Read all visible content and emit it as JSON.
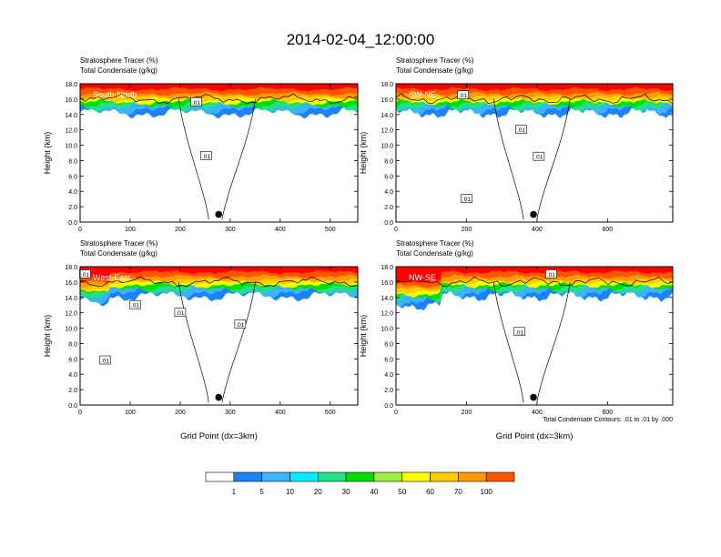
{
  "title": "2014-02-04_12:00:00",
  "colors": {
    "levels": [
      "#ffffff",
      "#1e82ff",
      "#3ab4ff",
      "#00eeff",
      "#22e088",
      "#00e000",
      "#a0ee40",
      "#ffff00",
      "#ffcc00",
      "#ff9900",
      "#ff5500",
      "#ff0000"
    ]
  },
  "colorbar": {
    "labels": [
      "1",
      "5",
      "10",
      "20",
      "30",
      "40",
      "50",
      "60",
      "70",
      "100"
    ]
  },
  "footnote": "Total Condensate Contours: .01 to .01 by .000",
  "chart_data": [
    {
      "type": "heatmap",
      "label": "South-North",
      "ylabel": "Height (km)",
      "xlabel": "",
      "header_line1": "Stratosphere Tracer   (%)",
      "header_line2": "Total Condensate   (g/kg)",
      "xlim": [
        0,
        555
      ],
      "ylim": [
        0,
        18
      ],
      "xticks": [
        0,
        100,
        200,
        300,
        400,
        500
      ],
      "yticks": [
        0,
        2,
        4,
        6,
        8,
        10,
        12,
        14,
        16,
        18
      ],
      "contour_labels": [
        {
          "text": ".01",
          "x": 252,
          "y": 8.6
        },
        {
          "text": ".01",
          "x": 232,
          "y": 15.6
        }
      ],
      "marker": {
        "x": 277,
        "y": 1.0
      }
    },
    {
      "type": "heatmap",
      "label": "SW-NE",
      "ylabel": "Height (km)",
      "xlabel": "",
      "header_line1": "Stratosphere Tracer   (%)",
      "header_line2": "Total Condensate   (g/kg)",
      "xlim": [
        0,
        785
      ],
      "ylim": [
        0,
        18
      ],
      "xticks": [
        0,
        200,
        400,
        600
      ],
      "yticks": [
        0,
        2,
        4,
        6,
        8,
        10,
        12,
        14,
        16,
        18
      ],
      "contour_labels": [
        {
          "text": ".01",
          "x": 190,
          "y": 16.5
        },
        {
          "text": ".01",
          "x": 355,
          "y": 12.0
        },
        {
          "text": ".01",
          "x": 405,
          "y": 8.5
        },
        {
          "text": ".01",
          "x": 200,
          "y": 3.0
        }
      ],
      "marker": {
        "x": 390,
        "y": 1.0
      }
    },
    {
      "type": "heatmap",
      "label": "West-East",
      "ylabel": "Height (km)",
      "xlabel": "Grid Point (dx=3km)",
      "header_line1": "Stratosphere Tracer   (%)",
      "header_line2": "Total Condensate   (g/kg)",
      "xlim": [
        0,
        555
      ],
      "ylim": [
        0,
        18
      ],
      "xticks": [
        0,
        100,
        200,
        300,
        400,
        500
      ],
      "yticks": [
        0,
        2,
        4,
        6,
        8,
        10,
        12,
        14,
        16,
        18
      ],
      "contour_labels": [
        {
          "text": ".01",
          "x": 10,
          "y": 17.0
        },
        {
          "text": ".01",
          "x": 110,
          "y": 13.0
        },
        {
          "text": ".01",
          "x": 200,
          "y": 12.0
        },
        {
          "text": ".01",
          "x": 320,
          "y": 10.5
        },
        {
          "text": ".01",
          "x": 50,
          "y": 5.8
        }
      ],
      "marker": {
        "x": 277,
        "y": 1.0
      }
    },
    {
      "type": "heatmap",
      "label": "NW-SE",
      "ylabel": "Height (km)",
      "xlabel": "Grid Point (dx=3km)",
      "header_line1": "Stratosphere Tracer   (%)",
      "header_line2": "Total Condensate   (g/kg)",
      "xlim": [
        0,
        785
      ],
      "ylim": [
        0,
        18
      ],
      "xticks": [
        0,
        200,
        400,
        600
      ],
      "yticks": [
        0,
        2,
        4,
        6,
        8,
        10,
        12,
        14,
        16,
        18
      ],
      "contour_labels": [
        {
          "text": ".01",
          "x": 440,
          "y": 17.0
        },
        {
          "text": ".01",
          "x": 350,
          "y": 9.5
        }
      ],
      "marker": {
        "x": 390,
        "y": 1.0
      }
    }
  ]
}
